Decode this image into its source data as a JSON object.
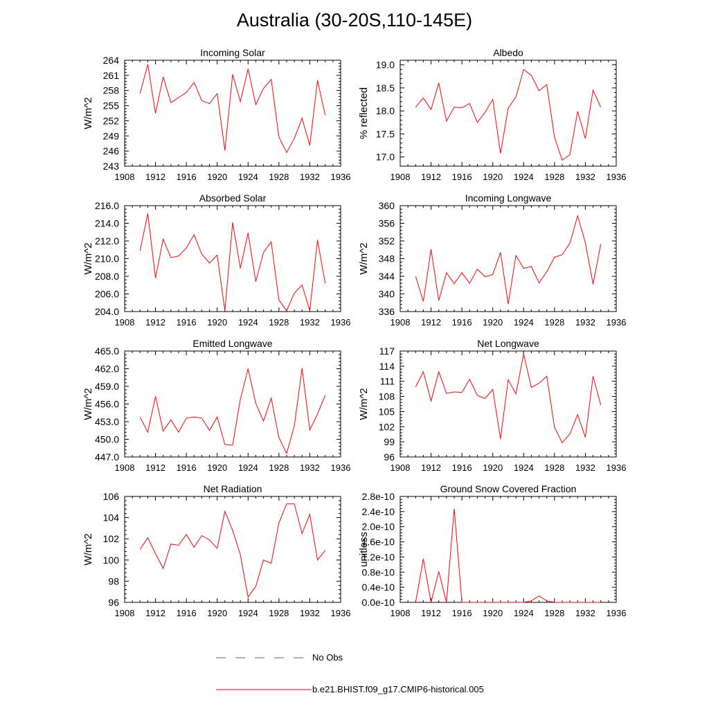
{
  "figure": {
    "title": "Australia (30-20S,110-145E)",
    "line_color": "#ff0000",
    "obs_color": "#5a5ad2"
  },
  "legend": {
    "obs_label": "No Obs",
    "model_label": "b.e21.BHIST.f09_g17.CMIP6-historical.005"
  },
  "chart_data": [
    {
      "type": "line",
      "title": "Incoming Solar",
      "ylabel": "W/m^2",
      "xlim": [
        1908,
        1936
      ],
      "ylim": [
        243,
        264
      ],
      "xticks": [
        "1908",
        "1912",
        "1916",
        "1920",
        "1924",
        "1928",
        "1932",
        "1936"
      ],
      "yticks": [
        "243",
        "246",
        "249",
        "252",
        "255",
        "258",
        "261",
        "264"
      ],
      "x": [
        1910,
        1911,
        1912,
        1913,
        1914,
        1915,
        1916,
        1917,
        1918,
        1919,
        1920,
        1921,
        1922,
        1923,
        1924,
        1925,
        1926,
        1927,
        1928,
        1929,
        1930,
        1931,
        1932,
        1933,
        1934
      ],
      "series": [
        {
          "values": [
            257.4,
            263.2,
            253.5,
            260.7,
            255.6,
            256.6,
            257.6,
            259.6,
            256.0,
            255.4,
            257.4,
            246.1,
            261.2,
            255.8,
            262.3,
            255.2,
            258.4,
            260.2,
            248.8,
            245.7,
            248.5,
            252.5,
            247.1,
            260.0,
            253.1
          ]
        }
      ]
    },
    {
      "type": "line",
      "title": "Albedo",
      "ylabel": "% reflected",
      "xlim": [
        1908,
        1936
      ],
      "ylim": [
        16.8,
        19.1
      ],
      "xticks": [
        "1908",
        "1912",
        "1916",
        "1920",
        "1924",
        "1928",
        "1932",
        "1936"
      ],
      "yticks": [
        "17.0",
        "17.5",
        "18.0",
        "18.5",
        "19.0"
      ],
      "ytick_values": [
        17.0,
        17.5,
        18.0,
        18.5,
        19.0
      ],
      "x": [
        1910,
        1911,
        1912,
        1913,
        1914,
        1915,
        1916,
        1917,
        1918,
        1919,
        1920,
        1921,
        1922,
        1923,
        1924,
        1925,
        1926,
        1927,
        1928,
        1929,
        1930,
        1931,
        1932,
        1933,
        1934
      ],
      "series": [
        {
          "values": [
            18.08,
            18.28,
            18.03,
            18.61,
            17.78,
            18.08,
            18.07,
            18.16,
            17.75,
            17.97,
            18.25,
            17.08,
            18.06,
            18.3,
            18.9,
            18.77,
            18.44,
            18.57,
            17.43,
            16.93,
            17.05,
            17.99,
            17.4,
            18.45,
            18.08
          ]
        }
      ]
    },
    {
      "type": "line",
      "title": "Absorbed Solar",
      "ylabel": "W/m^2",
      "xlim": [
        1908,
        1936
      ],
      "ylim": [
        204,
        216
      ],
      "xticks": [
        "1908",
        "1912",
        "1916",
        "1920",
        "1924",
        "1928",
        "1932",
        "1936"
      ],
      "yticks": [
        "204.0",
        "206.0",
        "208.0",
        "210.0",
        "212.0",
        "214.0",
        "216.0"
      ],
      "x": [
        1910,
        1911,
        1912,
        1913,
        1914,
        1915,
        1916,
        1917,
        1918,
        1919,
        1920,
        1921,
        1922,
        1923,
        1924,
        1925,
        1926,
        1927,
        1928,
        1929,
        1930,
        1931,
        1932,
        1933,
        1934
      ],
      "series": [
        {
          "values": [
            210.9,
            215.1,
            207.8,
            212.2,
            210.1,
            210.3,
            211.2,
            212.7,
            210.5,
            209.5,
            210.4,
            204.1,
            214.1,
            208.9,
            212.9,
            207.4,
            210.7,
            211.9,
            205.3,
            204.1,
            206.1,
            207.0,
            204.1,
            212.1,
            207.2
          ]
        }
      ]
    },
    {
      "type": "line",
      "title": "Incoming Longwave",
      "ylabel": "W/m^2",
      "xlim": [
        1908,
        1936
      ],
      "ylim": [
        336,
        360
      ],
      "xticks": [
        "1908",
        "1912",
        "1916",
        "1920",
        "1924",
        "1928",
        "1932",
        "1936"
      ],
      "yticks": [
        "336",
        "340",
        "344",
        "348",
        "352",
        "356",
        "360"
      ],
      "x": [
        1910,
        1911,
        1912,
        1913,
        1914,
        1915,
        1916,
        1917,
        1918,
        1919,
        1920,
        1921,
        1922,
        1923,
        1924,
        1925,
        1926,
        1927,
        1928,
        1929,
        1930,
        1931,
        1932,
        1933,
        1934
      ],
      "series": [
        {
          "values": [
            344.0,
            338.3,
            350.1,
            338.5,
            344.8,
            342.3,
            344.8,
            342.4,
            345.6,
            343.9,
            344.4,
            349.4,
            337.7,
            348.7,
            345.8,
            346.2,
            342.5,
            345.0,
            348.3,
            348.9,
            351.5,
            357.7,
            351.6,
            342.2,
            351.3
          ]
        }
      ]
    },
    {
      "type": "line",
      "title": "Emitted Longwave",
      "ylabel": "W/m^2",
      "xlim": [
        1908,
        1936
      ],
      "ylim": [
        447,
        465
      ],
      "xticks": [
        "1908",
        "1912",
        "1916",
        "1920",
        "1924",
        "1928",
        "1932",
        "1936"
      ],
      "yticks": [
        "447.0",
        "450.0",
        "453.0",
        "456.0",
        "459.0",
        "462.0",
        "465.0"
      ],
      "x": [
        1910,
        1911,
        1912,
        1913,
        1914,
        1915,
        1916,
        1917,
        1918,
        1919,
        1920,
        1921,
        1922,
        1923,
        1924,
        1925,
        1926,
        1927,
        1928,
        1929,
        1930,
        1931,
        1932,
        1933,
        1934
      ],
      "series": [
        {
          "values": [
            453.8,
            451.2,
            457.3,
            451.4,
            453.3,
            451.2,
            453.6,
            453.8,
            453.6,
            451.5,
            453.8,
            449.1,
            449.0,
            456.8,
            462.0,
            456.1,
            453.1,
            457.0,
            450.3,
            447.6,
            452.3,
            462.1,
            451.6,
            454.3,
            457.5
          ]
        }
      ]
    },
    {
      "type": "line",
      "title": "Net Longwave",
      "ylabel": "W/m^2",
      "xlim": [
        1908,
        1936
      ],
      "ylim": [
        96,
        117
      ],
      "xticks": [
        "1908",
        "1912",
        "1916",
        "1920",
        "1924",
        "1928",
        "1932",
        "1936"
      ],
      "yticks": [
        "96",
        "99",
        "102",
        "105",
        "108",
        "111",
        "114",
        "117"
      ],
      "x": [
        1910,
        1911,
        1912,
        1913,
        1914,
        1915,
        1916,
        1917,
        1918,
        1919,
        1920,
        1921,
        1922,
        1923,
        1924,
        1925,
        1926,
        1927,
        1928,
        1929,
        1930,
        1931,
        1932,
        1933,
        1934
      ],
      "series": [
        {
          "values": [
            109.9,
            112.9,
            107.1,
            112.9,
            108.6,
            108.9,
            108.8,
            111.4,
            108.2,
            107.6,
            109.4,
            99.6,
            111.3,
            108.5,
            116.4,
            109.8,
            110.6,
            112.0,
            101.9,
            98.8,
            100.6,
            104.4,
            99.9,
            112.0,
            106.3
          ]
        }
      ]
    },
    {
      "type": "line",
      "title": "Net Radiation",
      "ylabel": "W/m^2",
      "xlim": [
        1908,
        1936
      ],
      "ylim": [
        96,
        106
      ],
      "xticks": [
        "1908",
        "1912",
        "1916",
        "1920",
        "1924",
        "1928",
        "1932",
        "1936"
      ],
      "yticks": [
        "96",
        "98",
        "100",
        "102",
        "104",
        "106"
      ],
      "x": [
        1910,
        1911,
        1912,
        1913,
        1914,
        1915,
        1916,
        1917,
        1918,
        1919,
        1920,
        1921,
        1922,
        1923,
        1924,
        1925,
        1926,
        1927,
        1928,
        1929,
        1930,
        1931,
        1932,
        1933,
        1934
      ],
      "series": [
        {
          "values": [
            101.0,
            102.1,
            100.6,
            99.2,
            101.5,
            101.4,
            102.4,
            101.2,
            102.3,
            101.9,
            101.1,
            104.6,
            102.8,
            100.5,
            96.5,
            97.5,
            100.0,
            99.7,
            103.5,
            105.3,
            105.3,
            102.5,
            104.3,
            100.0,
            100.9
          ]
        }
      ]
    },
    {
      "type": "line",
      "title": "Ground Snow Covered Fraction",
      "ylabel": "unitless",
      "xlim": [
        1908,
        1936
      ],
      "ylim": [
        0,
        2.8e-10
      ],
      "xticks": [
        "1908",
        "1912",
        "1916",
        "1920",
        "1924",
        "1928",
        "1932",
        "1936"
      ],
      "yticks": [
        "0.0e-10",
        "0.4e-10",
        "0.8e-10",
        "1.2e-10",
        "1.6e-10",
        "2.0e-10",
        "2.4e-10",
        "2.8e-10"
      ],
      "x": [
        1910,
        1911,
        1912,
        1913,
        1914,
        1915,
        1916,
        1917,
        1918,
        1919,
        1920,
        1921,
        1922,
        1923,
        1924,
        1925,
        1926,
        1927,
        1928,
        1929,
        1930,
        1931,
        1932,
        1933,
        1934
      ],
      "series": [
        {
          "values": [
            0,
            1.15e-10,
            0,
            8.2e-11,
            0,
            2.48e-10,
            0,
            0,
            0,
            0,
            0,
            0,
            0,
            0,
            0,
            4e-12,
            1.7e-11,
            4e-12,
            0,
            0,
            0,
            0,
            0,
            0,
            0
          ]
        }
      ]
    }
  ]
}
